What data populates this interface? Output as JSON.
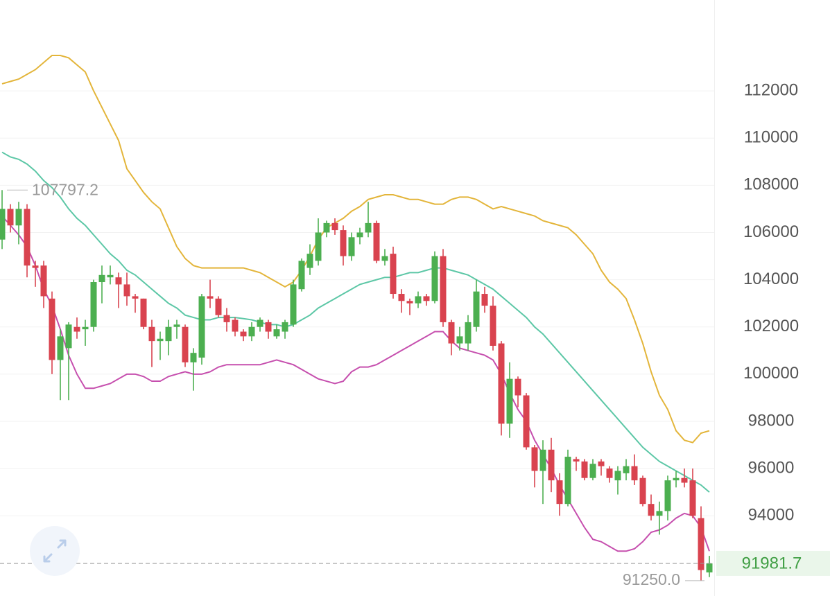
{
  "chart_data": {
    "type": "candlestick",
    "ylim": [
      90600,
      115850
    ],
    "yticks": [
      94000,
      96000,
      98000,
      100000,
      102000,
      104000,
      106000,
      108000,
      110000,
      112000
    ],
    "grid": true,
    "up_color": "#4caf50",
    "down_color": "#d9434f",
    "open": [
      105700,
      107000,
      106300,
      107000,
      104600,
      104600,
      103200,
      100600,
      101100,
      102000,
      101900,
      102000,
      103900,
      104100,
      104100,
      103800,
      103300,
      103200,
      102000,
      101400,
      101400,
      102000,
      102000,
      100500,
      100700,
      103300,
      103200,
      102500,
      102300,
      101800,
      101600,
      102000,
      102200,
      101600,
      101800,
      102100,
      103600,
      104500,
      104800,
      106000,
      106400,
      106100,
      105000,
      105800,
      106000,
      106400,
      104800,
      105100,
      103400,
      103100,
      103000,
      103300,
      103100,
      105000,
      102200,
      101300,
      101300,
      102000,
      103400,
      102900,
      101300,
      97900,
      99800,
      99100,
      96900,
      95900,
      96800,
      95500,
      94500,
      96400,
      96300,
      95600,
      96300,
      96000,
      95500,
      95800,
      96100,
      95600,
      94500,
      94000,
      94200,
      95500,
      95600,
      95500,
      93900,
      91600
    ],
    "high": [
      107797.2,
      107200,
      107300,
      107200,
      104800,
      104800,
      103500,
      101900,
      102200,
      102400,
      102300,
      104000,
      104600,
      104600,
      104300,
      104300,
      103400,
      103200,
      102300,
      101800,
      102300,
      102300,
      102100,
      101100,
      103400,
      104000,
      103300,
      102800,
      102400,
      101900,
      102200,
      102400,
      102300,
      102100,
      102300,
      104000,
      104900,
      105500,
      106600,
      106500,
      106600,
      106300,
      106000,
      106200,
      107300,
      106500,
      105300,
      105400,
      103600,
      103200,
      103500,
      103400,
      105200,
      105300,
      102300,
      102000,
      102500,
      104000,
      103700,
      103300,
      101400,
      100500,
      99900,
      99200,
      97000,
      97200,
      97300,
      95800,
      96800,
      96500,
      96400,
      96400,
      96400,
      96100,
      96100,
      96400,
      96600,
      95700,
      94900,
      94600,
      95700,
      95900,
      96000,
      96000,
      94400,
      92300
    ],
    "low": [
      105300,
      106000,
      105500,
      104100,
      103700,
      102800,
      100000,
      98900,
      98900,
      101500,
      101200,
      101800,
      103000,
      103800,
      102800,
      102900,
      102600,
      101900,
      100300,
      100600,
      100800,
      101500,
      100300,
      99300,
      100400,
      102800,
      102400,
      101800,
      101600,
      101400,
      101400,
      101800,
      101500,
      101500,
      101500,
      102000,
      103500,
      104200,
      104600,
      105800,
      105900,
      104600,
      104800,
      105500,
      105800,
      104700,
      104600,
      103200,
      102600,
      102500,
      102800,
      102900,
      103000,
      102000,
      100800,
      101000,
      101000,
      101800,
      102600,
      101000,
      97400,
      97300,
      98600,
      96800,
      95200,
      94500,
      95000,
      94000,
      94400,
      95900,
      95500,
      95500,
      95700,
      95400,
      94900,
      95500,
      95300,
      94400,
      93800,
      93200,
      93800,
      95200,
      95200,
      93900,
      91250,
      91400
    ],
    "close": [
      107000,
      106300,
      107000,
      104600,
      104500,
      103300,
      100600,
      101600,
      102100,
      101800,
      102000,
      103900,
      104200,
      104200,
      103800,
      103300,
      103200,
      102000,
      101400,
      101500,
      102000,
      102100,
      100500,
      100900,
      103300,
      103200,
      102500,
      102200,
      101800,
      101600,
      102000,
      102300,
      101800,
      101900,
      102200,
      103800,
      104800,
      105100,
      106000,
      106400,
      106100,
      105000,
      105800,
      106000,
      106400,
      104800,
      105000,
      103400,
      103100,
      103000,
      103300,
      103100,
      105000,
      102200,
      101300,
      101600,
      102200,
      103500,
      102900,
      101200,
      97900,
      99800,
      99100,
      96900,
      95900,
      96800,
      95500,
      94500,
      96500,
      96300,
      95600,
      96200,
      96100,
      95600,
      95900,
      96100,
      95500,
      94500,
      94000,
      94200,
      95500,
      95600,
      95400,
      94000,
      91700,
      91981.7
    ],
    "series": [
      {
        "color": "#e3b53a",
        "values": [
          112300,
          112400,
          112500,
          112700,
          112900,
          113200,
          113500,
          113500,
          113400,
          113100,
          112800,
          112000,
          111300,
          110600,
          109900,
          108700,
          108200,
          107700,
          107300,
          107000,
          106200,
          105400,
          104900,
          104600,
          104500,
          104500,
          104500,
          104500,
          104500,
          104500,
          104400,
          104300,
          104100,
          103900,
          103700,
          103900,
          104400,
          105000,
          105700,
          106200,
          106400,
          106600,
          106900,
          107100,
          107400,
          107500,
          107600,
          107600,
          107500,
          107400,
          107400,
          107300,
          107200,
          107200,
          107400,
          107500,
          107500,
          107400,
          107200,
          107000,
          107100,
          107000,
          106900,
          106800,
          106700,
          106500,
          106400,
          106300,
          106200,
          105900,
          105500,
          105100,
          104400,
          103900,
          103600,
          103200,
          102300,
          101300,
          100100,
          99100,
          98500,
          97600,
          97200,
          97100,
          97500,
          97600
        ]
      },
      {
        "color": "#5cc7a6",
        "values": [
          109400,
          109200,
          109100,
          108900,
          108600,
          108200,
          107900,
          107500,
          107000,
          106600,
          106300,
          105900,
          105500,
          105100,
          104800,
          104400,
          104200,
          103900,
          103600,
          103300,
          103000,
          102800,
          102500,
          102400,
          102300,
          102300,
          102400,
          102400,
          102400,
          102350,
          102300,
          102200,
          102100,
          102100,
          102000,
          102100,
          102300,
          102500,
          102800,
          103000,
          103200,
          103400,
          103600,
          103800,
          103900,
          104000,
          104100,
          104100,
          104200,
          104300,
          104300,
          104400,
          104500,
          104500,
          104400,
          104300,
          104200,
          104000,
          103800,
          103600,
          103300,
          103000,
          102700,
          102400,
          102000,
          101700,
          101300,
          100900,
          100500,
          100100,
          99700,
          99300,
          98900,
          98500,
          98100,
          97700,
          97300,
          96900,
          96600,
          96300,
          96100,
          95900,
          95700,
          95500,
          95300,
          95000
        ]
      },
      {
        "color": "#c64fae",
        "values": [
          106700,
          106300,
          105900,
          105400,
          104600,
          103600,
          102900,
          101900,
          100800,
          100000,
          99400,
          99400,
          99500,
          99600,
          99800,
          100000,
          100000,
          99900,
          99700,
          99700,
          99900,
          100000,
          100100,
          100000,
          100000,
          100100,
          100300,
          100400,
          100400,
          100400,
          100400,
          100400,
          100500,
          100600,
          100500,
          100400,
          100200,
          100000,
          99800,
          99700,
          99600,
          99700,
          100100,
          100300,
          100300,
          100400,
          100600,
          100800,
          101000,
          101200,
          101400,
          101600,
          101800,
          101800,
          101400,
          101100,
          101000,
          100900,
          100800,
          100600,
          100000,
          99200,
          98500,
          98000,
          97200,
          96600,
          96000,
          95300,
          94700,
          94100,
          93500,
          93000,
          92900,
          92700,
          92500,
          92500,
          92600,
          92900,
          93300,
          93400,
          93600,
          93900,
          94100,
          94000,
          93500,
          92500
        ]
      }
    ],
    "annotations": [
      {
        "label": "107797.2",
        "value": 107797.2
      },
      {
        "label": "91250.0",
        "value": 91250
      }
    ],
    "last_price": {
      "label": "91981.7",
      "value": 91981.7,
      "color": "#3f9e43"
    }
  }
}
